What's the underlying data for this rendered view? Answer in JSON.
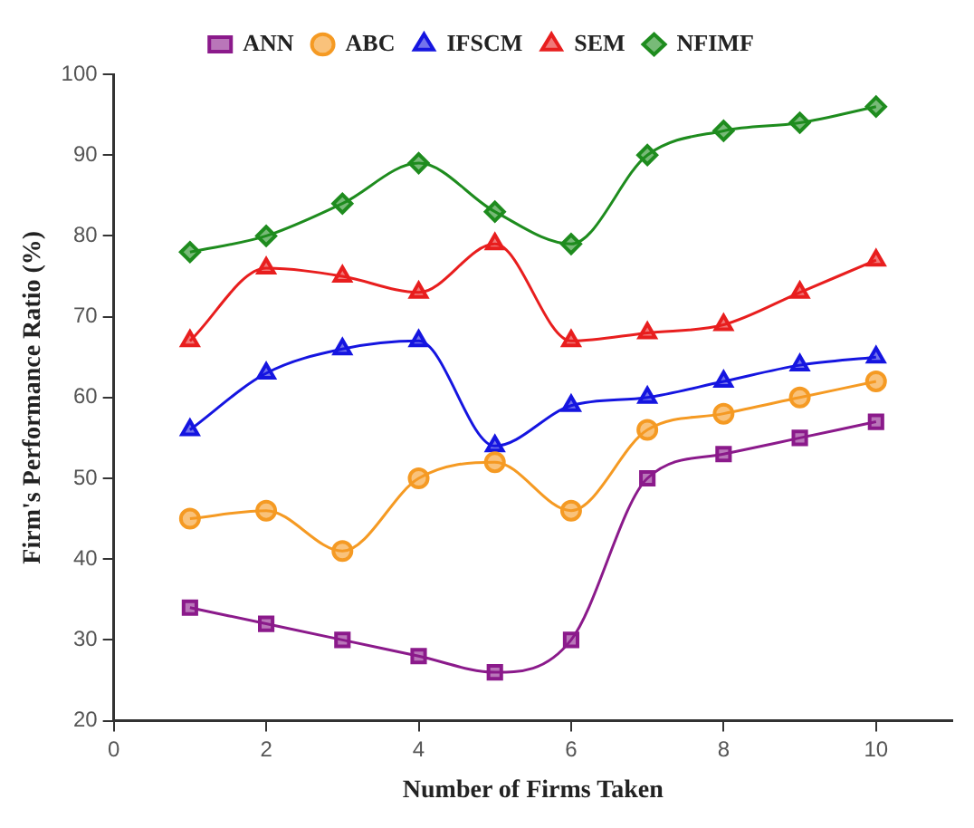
{
  "chart_data": {
    "type": "line",
    "xlabel": "Number of Firms Taken",
    "ylabel": "Firm's Performance Ratio (%)",
    "x": [
      1,
      2,
      3,
      4,
      5,
      6,
      7,
      8,
      9,
      10
    ],
    "series": [
      {
        "name": "ANN",
        "color": "#8b1a8b",
        "marker": "square",
        "values": [
          34,
          32,
          30,
          28,
          26,
          30,
          50,
          53,
          55,
          57
        ]
      },
      {
        "name": "ABC",
        "color": "#f59a23",
        "marker": "circle",
        "values": [
          45,
          46,
          41,
          50,
          52,
          46,
          56,
          58,
          60,
          62
        ]
      },
      {
        "name": "IFSCM",
        "color": "#1515e0",
        "marker": "triangle",
        "values": [
          56,
          63,
          66,
          67,
          54,
          59,
          60,
          62,
          64,
          65
        ]
      },
      {
        "name": "SEM",
        "color": "#e81e1e",
        "marker": "triangle",
        "values": [
          67,
          76,
          75,
          73,
          79,
          67,
          68,
          69,
          73,
          77
        ]
      },
      {
        "name": "NFIMF",
        "color": "#1e8c1e",
        "marker": "diamond",
        "values": [
          78,
          80,
          84,
          89,
          83,
          79,
          90,
          93,
          94,
          96
        ]
      }
    ],
    "xlim": [
      0,
      11
    ],
    "xticks": [
      0,
      2,
      4,
      6,
      8,
      10
    ],
    "ylim": [
      20,
      100
    ],
    "yticks": [
      20,
      30,
      40,
      50,
      60,
      70,
      80,
      90,
      100
    ],
    "grid": false,
    "legend": "top",
    "line_style": "solid"
  }
}
